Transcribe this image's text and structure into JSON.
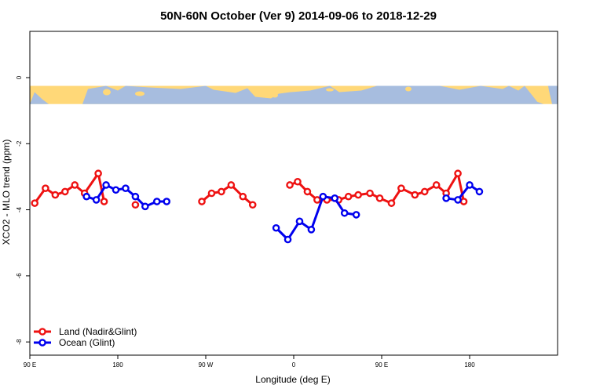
{
  "chart_data": {
    "type": "line",
    "title": "50N-60N October (Ver 9)   2014-09-06 to 2018-12-29",
    "xlabel": "Longitude (deg E)",
    "ylabel": "XCO2 - MLO trend (ppm)",
    "xlim": [
      -90,
      180
    ],
    "ylim": [
      -8.4,
      1.4
    ],
    "x_ticks": [
      {
        "value": -90,
        "label": "90 E"
      },
      {
        "value": -45,
        "label": "180"
      },
      {
        "value": 0,
        "label": "90 W"
      },
      {
        "value": 45,
        "label": "0"
      },
      {
        "value": 90,
        "label": "90 E"
      },
      {
        "value": 135,
        "label": "180"
      }
    ],
    "y_ticks": [
      {
        "value": 0,
        "label": "0"
      },
      {
        "value": -2,
        "label": "-2"
      },
      {
        "value": -4,
        "label": "-4"
      },
      {
        "value": -6,
        "label": "-6"
      },
      {
        "value": -8,
        "label": "-8"
      }
    ],
    "map_strip": {
      "y_top": -0.25,
      "y_bottom": -0.8,
      "colors": {
        "land": "#ffd878",
        "ocean": "#a7bddf"
      }
    },
    "legend": {
      "position": "bottom-left"
    },
    "series": [
      {
        "name": "Land (Nadir&Glint)",
        "color": "#ee1111",
        "segments": [
          [
            [
              -87.5,
              -3.8
            ],
            [
              -82,
              -3.35
            ],
            [
              -77,
              -3.55
            ],
            [
              -72,
              -3.45
            ],
            [
              -67,
              -3.25
            ],
            [
              -62,
              -3.5
            ],
            [
              -55,
              -2.9
            ],
            [
              -52,
              -3.75
            ]
          ],
          [
            [
              -36,
              -3.85
            ]
          ],
          [
            [
              -2,
              -3.75
            ],
            [
              3,
              -3.5
            ],
            [
              8,
              -3.45
            ],
            [
              13,
              -3.25
            ],
            [
              19,
              -3.6
            ],
            [
              24,
              -3.85
            ]
          ],
          [
            [
              43,
              -3.25
            ],
            [
              47,
              -3.15
            ],
            [
              52,
              -3.45
            ],
            [
              57,
              -3.7
            ],
            [
              62,
              -3.7
            ],
            [
              68,
              -3.7
            ],
            [
              73,
              -3.6
            ],
            [
              78,
              -3.55
            ],
            [
              84,
              -3.5
            ],
            [
              89,
              -3.65
            ],
            [
              95,
              -3.8
            ],
            [
              100,
              -3.35
            ],
            [
              107,
              -3.55
            ],
            [
              112,
              -3.45
            ],
            [
              118,
              -3.25
            ],
            [
              123,
              -3.5
            ],
            [
              129,
              -2.9
            ],
            [
              132,
              -3.75
            ]
          ]
        ]
      },
      {
        "name": "Ocean (Glint)",
        "color": "#0000ee",
        "segments": [
          [
            [
              -61,
              -3.6
            ],
            [
              -56,
              -3.7
            ],
            [
              -51,
              -3.25
            ],
            [
              -46,
              -3.4
            ],
            [
              -41,
              -3.35
            ],
            [
              -36,
              -3.6
            ],
            [
              -31,
              -3.9
            ],
            [
              -25,
              -3.75
            ],
            [
              -20,
              -3.75
            ]
          ],
          [
            [
              36,
              -4.55
            ],
            [
              42,
              -4.9
            ],
            [
              48,
              -4.35
            ],
            [
              54,
              -4.6
            ],
            [
              60,
              -3.6
            ],
            [
              66,
              -3.65
            ],
            [
              71,
              -4.1
            ],
            [
              77,
              -4.15
            ]
          ],
          [
            [
              123,
              -3.65
            ],
            [
              129,
              -3.7
            ],
            [
              135,
              -3.25
            ],
            [
              140,
              -3.45
            ]
          ]
        ]
      }
    ]
  }
}
